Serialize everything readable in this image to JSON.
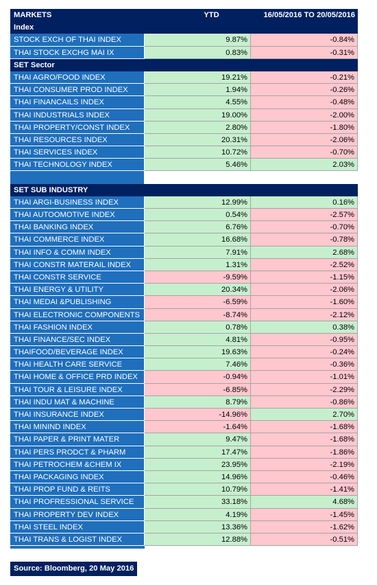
{
  "header": {
    "markets": "MARKETS",
    "index": "Index",
    "ytd": "YTD",
    "week": "16/05/2016 TO 20/05/2016"
  },
  "index_rows": [
    {
      "name": "STOCK EXCH OF THAI INDEX",
      "ytd": "9.87%",
      "week": "-0.84%"
    },
    {
      "name": "THAI STOCK EXCHG MAI IX",
      "ytd": "0.83%",
      "week": "-0.31%"
    }
  ],
  "set_sector": {
    "title": "SET Sector",
    "rows": [
      {
        "name": "THAI AGRO/FOOD INDEX",
        "ytd": "19.21%",
        "week": "-0.21%"
      },
      {
        "name": "THAI CONSUMER PROD INDEX",
        "ytd": "1.94%",
        "week": "-0.26%"
      },
      {
        "name": "THAI FINANCAILS INDEX",
        "ytd": "4.55%",
        "week": "-0.48%"
      },
      {
        "name": "THAI INDUSTRIALS INDEX",
        "ytd": "19.00%",
        "week": "-2.00%"
      },
      {
        "name": "THAI PROPERTY/CONST INDEX",
        "ytd": "2.80%",
        "week": "-1.80%"
      },
      {
        "name": "THAI RESOURCES INDEX",
        "ytd": "20.31%",
        "week": "-2.06%"
      },
      {
        "name": "THAI SERVICES INDEX",
        "ytd": "10.72%",
        "week": "-0.70%"
      },
      {
        "name": "THAI TECHNOLOGY INDEX",
        "ytd": "5.46%",
        "week": "2.03%"
      }
    ]
  },
  "set_sub_industry": {
    "title": "SET SUB INDUSTRY",
    "rows": [
      {
        "name": "THAI ARGI-BUSINESS INDEX",
        "ytd": "12.99%",
        "week": "0.16%"
      },
      {
        "name": "THAI AUTOOMOTIVE INDEX",
        "ytd": "0.54%",
        "week": "-2.57%"
      },
      {
        "name": "THAI BANKING INDEX",
        "ytd": "6.76%",
        "week": "-0.70%"
      },
      {
        "name": "THAI COMMERCE INDEX",
        "ytd": "16.68%",
        "week": "-0.78%"
      },
      {
        "name": "THAI INFO & COMM INDEX",
        "ytd": "7.91%",
        "week": "2.68%"
      },
      {
        "name": "THAI CONSTR MATERAIL INDEX",
        "ytd": "1.31%",
        "week": "-2.52%"
      },
      {
        "name": "THAI CONSTR SERVICE",
        "ytd": "-9.59%",
        "week": "-1.15%"
      },
      {
        "name": "THAI ENERGY & UTILITY",
        "ytd": "20.34%",
        "week": "-2.06%"
      },
      {
        "name": "THAI MEDAI &PUBLISHING",
        "ytd": "-6.59%",
        "week": "-1.60%"
      },
      {
        "name": "THAI ELECTRONIC COMPONENTS",
        "ytd": "-8.74%",
        "week": "-2.12%"
      },
      {
        "name": "THAI FASHION INDEX",
        "ytd": "0.78%",
        "week": "0.38%"
      },
      {
        "name": "THAI FINANCE/SEC INDEX",
        "ytd": "4.81%",
        "week": "-0.95%"
      },
      {
        "name": "THAIFOOD/BEVERAGE INDEX",
        "ytd": "19.63%",
        "week": "-0.24%"
      },
      {
        "name": "THAI HEALTH CARE SERVICE",
        "ytd": "7.46%",
        "week": "-0.36%"
      },
      {
        "name": "THAI HOME & OFFICE PRD INDEX",
        "ytd": "-0.94%",
        "week": "-1.01%"
      },
      {
        "name": "THAI TOUR & LEISURE INDEX",
        "ytd": "-6.85%",
        "week": "-2.29%"
      },
      {
        "name": "THAI INDU MAT & MACHINE",
        "ytd": "8.79%",
        "week": "-0.86%"
      },
      {
        "name": "THAI INSURANCE INDEX",
        "ytd": "-14.96%",
        "week": "2.70%"
      },
      {
        "name": "THAI MININD INDEX",
        "ytd": "-1.64%",
        "week": "-1.68%"
      },
      {
        "name": "THAI PAPER & PRINT MATER",
        "ytd": "9.47%",
        "week": "-1.68%"
      },
      {
        "name": "THAI PERS PRODCT & PHARM",
        "ytd": "17.47%",
        "week": "-1.86%"
      },
      {
        "name": "THAI PETROCHEM &CHEM IX",
        "ytd": "23.95%",
        "week": "-2.19%"
      },
      {
        "name": "THAI PACKAGING INDEX",
        "ytd": "14.96%",
        "week": "-0.46%"
      },
      {
        "name": "THAI PROP FUND & REITS",
        "ytd": "10.79%",
        "week": "-1.41%"
      },
      {
        "name": "THAI PROFRESSIONAL SERVICE",
        "ytd": "33.18%",
        "week": "4.68%"
      },
      {
        "name": "THAI PROPERTY DEV INDEX",
        "ytd": "4.19%",
        "week": "-1.45%"
      },
      {
        "name": "THAI STEEL INDEX",
        "ytd": "13.36%",
        "week": "-1.62%"
      },
      {
        "name": "THAI TRANS & LOGIST INDEX",
        "ytd": "12.88%",
        "week": "-0.51%"
      }
    ]
  },
  "source": "Source: Bloomberg, 20 May 2016",
  "colors": {
    "dark_navy": "#002060",
    "label_blue": "#1f6fbd",
    "positive_fill": "#c6efce",
    "negative_fill": "#ffc7ce"
  }
}
